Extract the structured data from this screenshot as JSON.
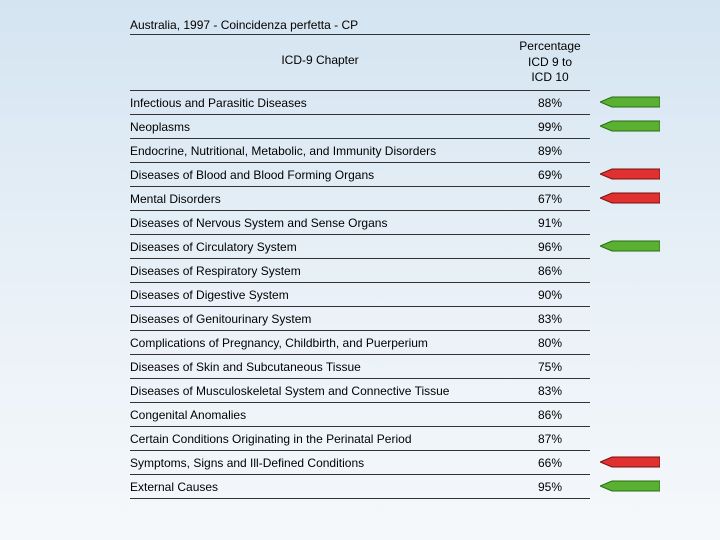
{
  "title": "Australia, 1997 - Coincidenza perfetta - CP",
  "header": {
    "col1": "ICD-9 Chapter",
    "col2_line1": "Percentage",
    "col2_line2": "ICD 9 to",
    "col2_line3": "ICD 10"
  },
  "rows": [
    {
      "label": "Infectious and Parasitic Diseases",
      "value": "88%",
      "arrow": "green"
    },
    {
      "label": "Neoplasms",
      "value": "99%",
      "arrow": "green"
    },
    {
      "label": "Endocrine, Nutritional, Metabolic, and Immunity Disorders",
      "value": "89%",
      "arrow": null
    },
    {
      "label": "Diseases of Blood and Blood Forming Organs",
      "value": "69%",
      "arrow": "red"
    },
    {
      "label": "Mental Disorders",
      "value": "67%",
      "arrow": "red"
    },
    {
      "label": "Diseases of Nervous System and Sense Organs",
      "value": "91%",
      "arrow": null
    },
    {
      "label": "Diseases of Circulatory System",
      "value": "96%",
      "arrow": "green"
    },
    {
      "label": "Diseases of Respiratory System",
      "value": "86%",
      "arrow": null
    },
    {
      "label": "Diseases of Digestive System",
      "value": "90%",
      "arrow": null
    },
    {
      "label": "Diseases of Genitourinary System",
      "value": "83%",
      "arrow": null
    },
    {
      "label": "Complications of Pregnancy, Childbirth, and Puerperium",
      "value": "80%",
      "arrow": null
    },
    {
      "label": "Diseases of Skin and Subcutaneous Tissue",
      "value": "75%",
      "arrow": null
    },
    {
      "label": "Diseases of Musculoskeletal System and Connective Tissue",
      "value": "83%",
      "arrow": null
    },
    {
      "label": "Congenital Anomalies",
      "value": "86%",
      "arrow": null
    },
    {
      "label": "Certain Conditions Originating in the Perinatal Period",
      "value": "87%",
      "arrow": null
    },
    {
      "label": "Symptoms, Signs and Ill-Defined Conditions",
      "value": "66%",
      "arrow": "red"
    },
    {
      "label": "External Causes",
      "value": "95%",
      "arrow": "green"
    }
  ],
  "arrow_colors": {
    "green_fill": "#5ab031",
    "green_stroke": "#2a6b12",
    "red_fill": "#e03030",
    "red_stroke": "#7a1010"
  }
}
